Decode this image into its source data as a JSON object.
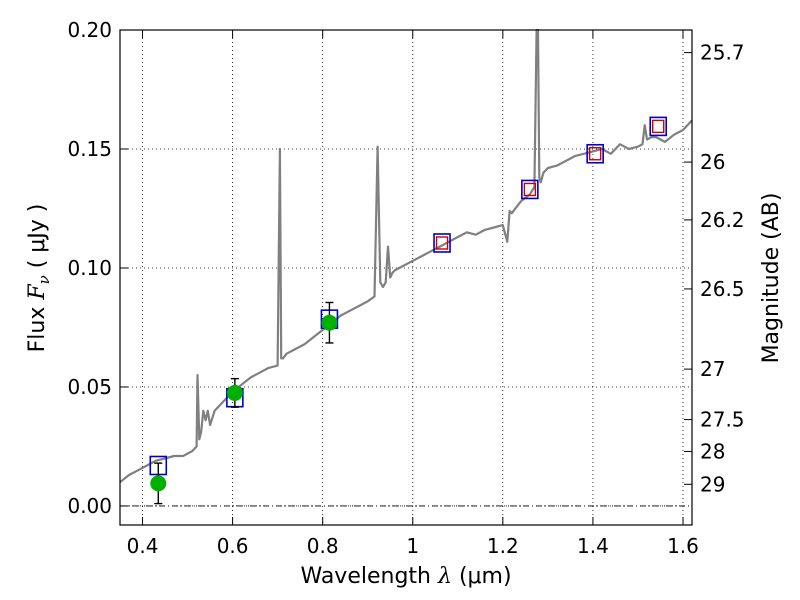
{
  "chart_data": {
    "type": "line",
    "xlabel": "Wavelength",
    "xlabel_symbol": "λ",
    "xlabel_unit": "(μm)",
    "ylabel": "Flux",
    "ylabel_symbol": "F",
    "ylabel_subscript": "ν",
    "ylabel_unit": "( μJy )",
    "y2label": "Magnitude (AB)",
    "xlim": [
      0.35,
      1.62
    ],
    "ylim": [
      -0.008,
      0.2
    ],
    "grid": true,
    "x_ticks": [
      0.4,
      0.6,
      0.8,
      1.0,
      1.2,
      1.4,
      1.6
    ],
    "x_tick_labels": [
      "0.4",
      "0.6",
      "0.8",
      "1",
      "1.2",
      "1.4",
      "1.6"
    ],
    "y_ticks": [
      0.0,
      0.05,
      0.1,
      0.15,
      0.2
    ],
    "y_tick_labels": [
      "0.00",
      "0.05",
      "0.10",
      "0.15",
      "0.20"
    ],
    "y2_ticks": [
      {
        "label": "25.7",
        "flux": 0.1905
      },
      {
        "label": "26",
        "flux": 0.1445
      },
      {
        "label": "26.2",
        "flux": 0.1202
      },
      {
        "label": "26.5",
        "flux": 0.0912
      },
      {
        "label": "27",
        "flux": 0.0575
      },
      {
        "label": "27.5",
        "flux": 0.0363
      },
      {
        "label": "28",
        "flux": 0.0229
      },
      {
        "label": "29",
        "flux": 0.0091
      }
    ],
    "model_spectrum": {
      "color": "#808080",
      "x": [
        0.35,
        0.37,
        0.39,
        0.41,
        0.43,
        0.45,
        0.47,
        0.49,
        0.51,
        0.52,
        0.522,
        0.526,
        0.53,
        0.535,
        0.54,
        0.545,
        0.55,
        0.56,
        0.57,
        0.58,
        0.6,
        0.62,
        0.64,
        0.66,
        0.68,
        0.7,
        0.705,
        0.708,
        0.712,
        0.72,
        0.74,
        0.76,
        0.78,
        0.8,
        0.82,
        0.84,
        0.86,
        0.88,
        0.9,
        0.915,
        0.922,
        0.928,
        0.934,
        0.94,
        0.945,
        0.95,
        0.955,
        0.96,
        0.98,
        1.0,
        1.02,
        1.04,
        1.06,
        1.08,
        1.1,
        1.12,
        1.14,
        1.16,
        1.18,
        1.2,
        1.21,
        1.215,
        1.22,
        1.24,
        1.26,
        1.27,
        1.275,
        1.278,
        1.281,
        1.284,
        1.29,
        1.3,
        1.32,
        1.34,
        1.36,
        1.38,
        1.4,
        1.42,
        1.44,
        1.46,
        1.48,
        1.5,
        1.51,
        1.515,
        1.52,
        1.53,
        1.54,
        1.56,
        1.58,
        1.6,
        1.62
      ],
      "y": [
        0.01,
        0.013,
        0.015,
        0.017,
        0.019,
        0.02,
        0.021,
        0.021,
        0.023,
        0.025,
        0.055,
        0.028,
        0.031,
        0.04,
        0.036,
        0.04,
        0.034,
        0.04,
        0.042,
        0.044,
        0.048,
        0.051,
        0.054,
        0.056,
        0.058,
        0.059,
        0.15,
        0.062,
        0.062,
        0.064,
        0.066,
        0.068,
        0.071,
        0.074,
        0.077,
        0.08,
        0.082,
        0.084,
        0.086,
        0.088,
        0.151,
        0.094,
        0.092,
        0.094,
        0.109,
        0.096,
        0.098,
        0.099,
        0.101,
        0.103,
        0.105,
        0.107,
        0.109,
        0.111,
        0.113,
        0.115,
        0.114,
        0.116,
        0.117,
        0.118,
        0.111,
        0.124,
        0.123,
        0.128,
        0.131,
        0.134,
        0.2,
        0.2,
        0.138,
        0.136,
        0.14,
        0.142,
        0.143,
        0.145,
        0.147,
        0.148,
        0.149,
        0.15,
        0.148,
        0.152,
        0.15,
        0.151,
        0.152,
        0.16,
        0.154,
        0.155,
        0.155,
        0.153,
        0.156,
        0.158,
        0.162
      ]
    },
    "observed_points": {
      "color": "#00b000",
      "x": [
        0.435,
        0.605,
        0.815
      ],
      "y": [
        0.0095,
        0.0475,
        0.077
      ],
      "yerr": [
        0.0085,
        0.006,
        0.0085
      ]
    },
    "model_photometry_blue": {
      "color": "#0000cc",
      "x": [
        0.435,
        0.605,
        0.815,
        1.065,
        1.26,
        1.405,
        1.545
      ],
      "y": [
        0.017,
        0.0455,
        0.0785,
        0.1105,
        0.133,
        0.148,
        0.1595
      ]
    },
    "model_photometry_red": {
      "color": "#cc0000",
      "x": [
        1.065,
        1.26,
        1.405,
        1.545
      ],
      "y": [
        0.1105,
        0.133,
        0.148,
        0.1595
      ]
    }
  }
}
